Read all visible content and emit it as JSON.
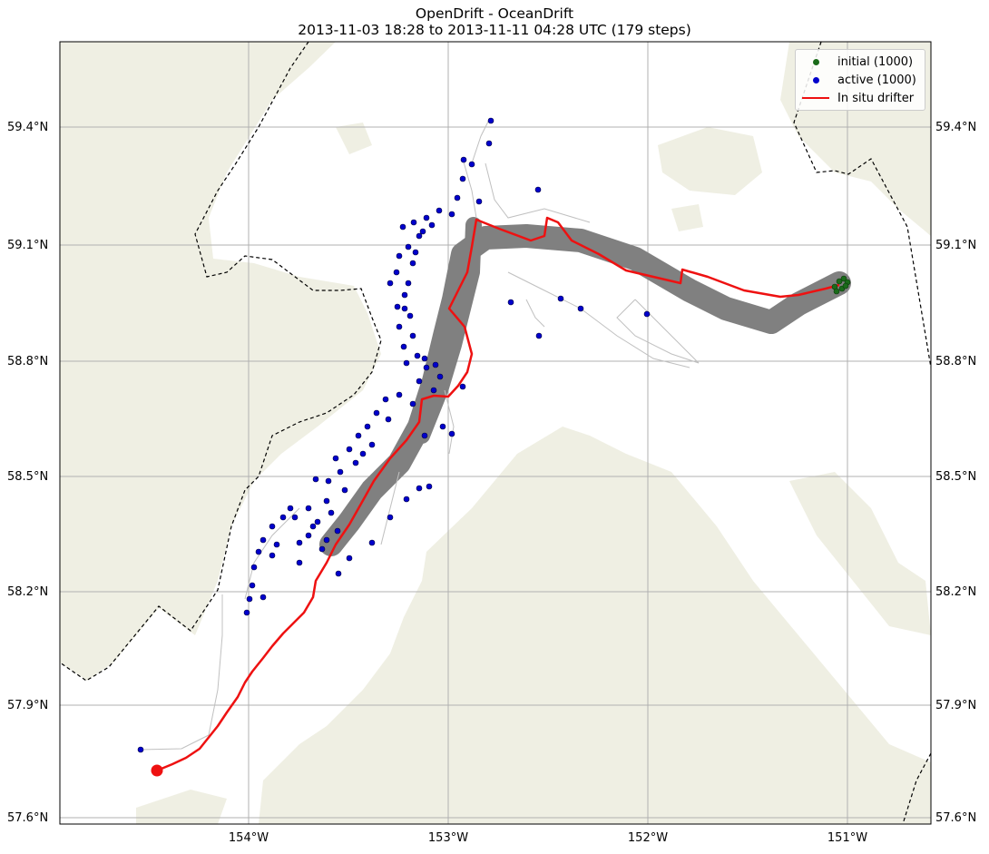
{
  "title": {
    "line1": "OpenDrift - OceanDrift",
    "line2": "2013-11-03 18:28 to 2013-11-11 04:28 UTC (179 steps)"
  },
  "axes": {
    "lon_ticks": [
      "154°W",
      "153°W",
      "152°W",
      "151°W"
    ],
    "lat_ticks": [
      "57.6°N",
      "57.9°N",
      "58.2°N",
      "58.5°N",
      "58.8°N",
      "59.1°N",
      "59.4°N"
    ],
    "grid": true
  },
  "legend": {
    "placement": "top-right",
    "items": [
      {
        "label": "initial (1000)",
        "marker": "dot",
        "color": "#1a6b1a"
      },
      {
        "label": "active (1000)",
        "marker": "dot",
        "color": "#0000cc"
      },
      {
        "label": "In situ drifter",
        "marker": "line",
        "color": "#ee1111"
      }
    ]
  },
  "colors": {
    "land": "#efefe3",
    "trajectories": "#808080",
    "trajectory_lines": "#c0c0c0",
    "border": "#000000"
  }
}
